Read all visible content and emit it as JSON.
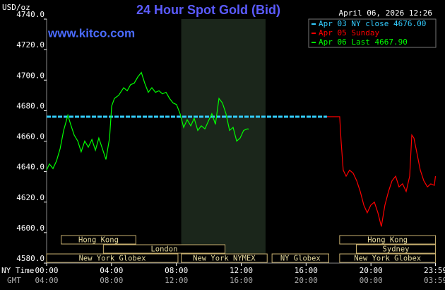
{
  "chart_data": {
    "type": "line",
    "title": "24 Hour Spot Gold (Bid)",
    "subtitle": "April 06, 2026 12:26",
    "source": "www.kitco.com",
    "y_unit": "USD/oz",
    "x_label": "NY Time",
    "x2_label": "GMT",
    "xlim": [
      0,
      24
    ],
    "ylim": [
      4580,
      4740
    ],
    "xticks": [
      {
        "value": 0,
        "label": "00:00"
      },
      {
        "value": 4,
        "label": "04:00"
      },
      {
        "value": 8,
        "label": "08:00"
      },
      {
        "value": 12,
        "label": "12:00"
      },
      {
        "value": 16,
        "label": "16:00"
      },
      {
        "value": 20,
        "label": "20:00"
      },
      {
        "value": 23.98,
        "label": "23:59"
      }
    ],
    "x2_tick_labels": [
      "04:00",
      "08:00",
      "12:00",
      "16:00",
      "20:00",
      "00:00",
      "03:59"
    ],
    "yticks": [
      {
        "value": 4580,
        "label": "4580.0"
      },
      {
        "value": 4600,
        "label": "4600.0"
      },
      {
        "value": 4620,
        "label": "4620.0"
      },
      {
        "value": 4640,
        "label": "4640.0"
      },
      {
        "value": 4660,
        "label": "4660.0"
      },
      {
        "value": 4680,
        "label": "4680.0"
      },
      {
        "value": 4700,
        "label": "4700.0"
      },
      {
        "value": 4720,
        "label": "4720.0"
      },
      {
        "value": 4740,
        "label": "4740.0"
      }
    ],
    "grid": false,
    "legend": "upper right",
    "highlight": [
      8.3,
      13.5
    ],
    "series": [
      {
        "name": "Apr 03 NY close 4676.00",
        "color": "#33ccff",
        "dashed": true,
        "x": [
          0,
          17.29
        ],
        "values": [
          4676,
          4676
        ]
      },
      {
        "name": "Apr 05 Sunday",
        "color": "#ff0000",
        "dashed": false,
        "x": [
          17.29,
          18.07,
          18.16,
          18.29,
          18.47,
          18.68,
          18.9,
          19.12,
          19.34,
          19.56,
          19.77,
          19.99,
          20.21,
          20.43,
          20.64,
          20.86,
          21.08,
          21.3,
          21.52,
          21.73,
          21.95,
          22.17,
          22.39,
          22.52,
          22.65,
          22.82,
          23.04,
          23.26,
          23.48,
          23.69,
          23.91,
          23.98
        ],
        "values": [
          4676,
          4676,
          4660,
          4641,
          4637,
          4641,
          4639,
          4634,
          4627,
          4618,
          4613,
          4618,
          4620,
          4613,
          4604,
          4618,
          4627,
          4634,
          4637,
          4630,
          4632,
          4627,
          4637,
          4664,
          4662,
          4653,
          4641,
          4634,
          4630,
          4632,
          4631,
          4637
        ]
      },
      {
        "name": "Apr 06 Last 4667.90",
        "color": "#00ff00",
        "dashed": false,
        "x": [
          0,
          0.17,
          0.39,
          0.61,
          0.83,
          1.05,
          1.31,
          1.48,
          1.7,
          1.92,
          2.13,
          2.35,
          2.57,
          2.79,
          3.01,
          3.22,
          3.44,
          3.66,
          3.88,
          4.01,
          4.18,
          4.44,
          4.75,
          4.97,
          5.18,
          5.4,
          5.62,
          5.84,
          6.05,
          6.27,
          6.49,
          6.71,
          6.93,
          7.14,
          7.36,
          7.58,
          7.8,
          8.01,
          8.23,
          8.45,
          8.67,
          8.89,
          9.1,
          9.32,
          9.54,
          9.76,
          9.97,
          10.19,
          10.41,
          10.63,
          10.84,
          11.06,
          11.28,
          11.5,
          11.72,
          11.93,
          12.15,
          12.37,
          12.46
        ],
        "values": [
          4641,
          4645,
          4642,
          4647,
          4655,
          4667,
          4677,
          4671,
          4664,
          4660,
          4653,
          4660,
          4656,
          4661,
          4654,
          4662,
          4655,
          4648,
          4662,
          4683,
          4688,
          4690,
          4695,
          4693,
          4697,
          4698,
          4702,
          4705,
          4698,
          4692,
          4695,
          4692,
          4693,
          4691,
          4692,
          4688,
          4685,
          4684,
          4678,
          4669,
          4674,
          4670,
          4675,
          4667,
          4670,
          4668,
          4673,
          4678,
          4671,
          4688,
          4685,
          4678,
          4667,
          4669,
          4660,
          4662,
          4667,
          4668,
          4667.9
        ]
      }
    ],
    "session_rows": [
      [
        {
          "name": "Hong Kong",
          "start": 0.9,
          "end": 5.5
        },
        {
          "name": "Hong Kong",
          "start": 18.07,
          "end": 23.98
        }
      ],
      [
        {
          "name": "London",
          "start": 3.5,
          "end": 11
        },
        {
          "name": "Sydney",
          "start": 19.1,
          "end": 23.98
        }
      ],
      [
        {
          "name": "New York Globex",
          "start": 0,
          "end": 8.1
        },
        {
          "name": "New York NYMEX",
          "start": 8.3,
          "end": 13.6
        },
        {
          "name": "NY Globex",
          "start": 13.9,
          "end": 17.4
        },
        {
          "name": "New York Globex",
          "start": 18.07,
          "end": 23.98
        }
      ]
    ]
  }
}
